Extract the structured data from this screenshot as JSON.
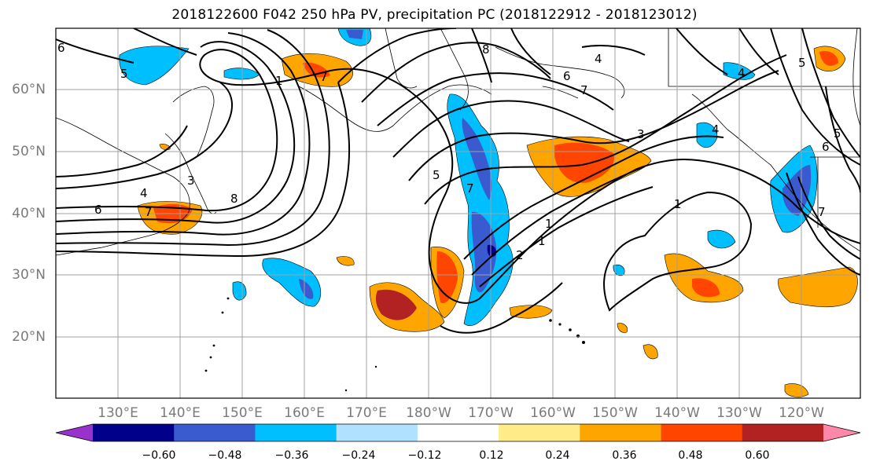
{
  "title": "2018122600 F042 250 hPa PV, precipitation PC (2018122912 - 2018123012)",
  "lat_labels": [
    "60°N",
    "50°N",
    "40°N",
    "30°N",
    "20°N"
  ],
  "lon_labels": [
    "130°E",
    "140°E",
    "150°E",
    "160°E",
    "170°E",
    "180°W",
    "170°W",
    "160°W",
    "150°W",
    "140°W",
    "130°W",
    "120°W"
  ],
  "colorbar": {
    "colors": [
      "#9932cc",
      "#00008b",
      "#3a5bcf",
      "#00bfff",
      "#b0e2ff",
      "#ffffff",
      "#ffeb88",
      "#ffa500",
      "#ff4500",
      "#b22222",
      "#ff88aa"
    ],
    "tick_labels": [
      "−0.60",
      "−0.48",
      "−0.36",
      "−0.24",
      "−0.12",
      "0.12",
      "0.24",
      "0.36",
      "0.48",
      "0.60"
    ]
  },
  "contour_labels": [
    "6",
    "5",
    "1",
    "8",
    "4",
    "6",
    "7",
    "3",
    "8",
    "7",
    "6",
    "4",
    "5",
    "7",
    "2",
    "1",
    "1",
    "3",
    "1",
    "7",
    "6",
    "5",
    "5",
    "4",
    "4",
    "7"
  ]
}
